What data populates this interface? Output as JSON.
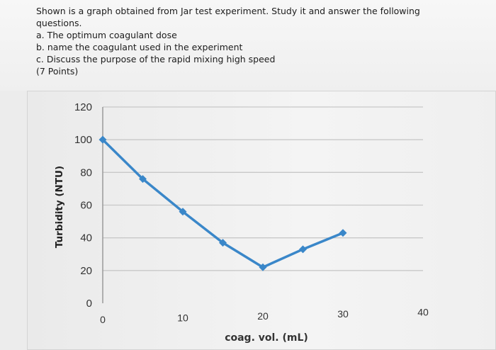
{
  "question": {
    "intro": "Shown is a graph obtained from Jar test experiment. Study it and answer the following",
    "intro_cont": "questions.",
    "item_a": "a. The optimum coagulant dose",
    "item_b": "b. name the coagulant used in the experiment",
    "item_c": "c. Discuss the purpose of the rapid mixing high speed",
    "points": "(7 Points)"
  },
  "chart_data": {
    "type": "line",
    "title": "",
    "xlabel": "coag. vol. (mL)",
    "ylabel": "Turbidity (NTU)",
    "xlim": [
      0,
      40
    ],
    "ylim": [
      0,
      120
    ],
    "x_ticks": [
      0,
      10,
      20,
      30,
      40
    ],
    "y_ticks": [
      0,
      20,
      40,
      60,
      80,
      100,
      120
    ],
    "grid": "horizontal",
    "series": [
      {
        "x": [
          0,
          5,
          10,
          15,
          20,
          25,
          30
        ],
        "y": [
          100,
          76,
          56,
          37,
          22,
          33,
          43
        ]
      }
    ],
    "colors": {
      "line": "#3a87c9",
      "marker": "#3a87c9",
      "grid": "#c8c8c8",
      "axis": "#999999"
    }
  }
}
